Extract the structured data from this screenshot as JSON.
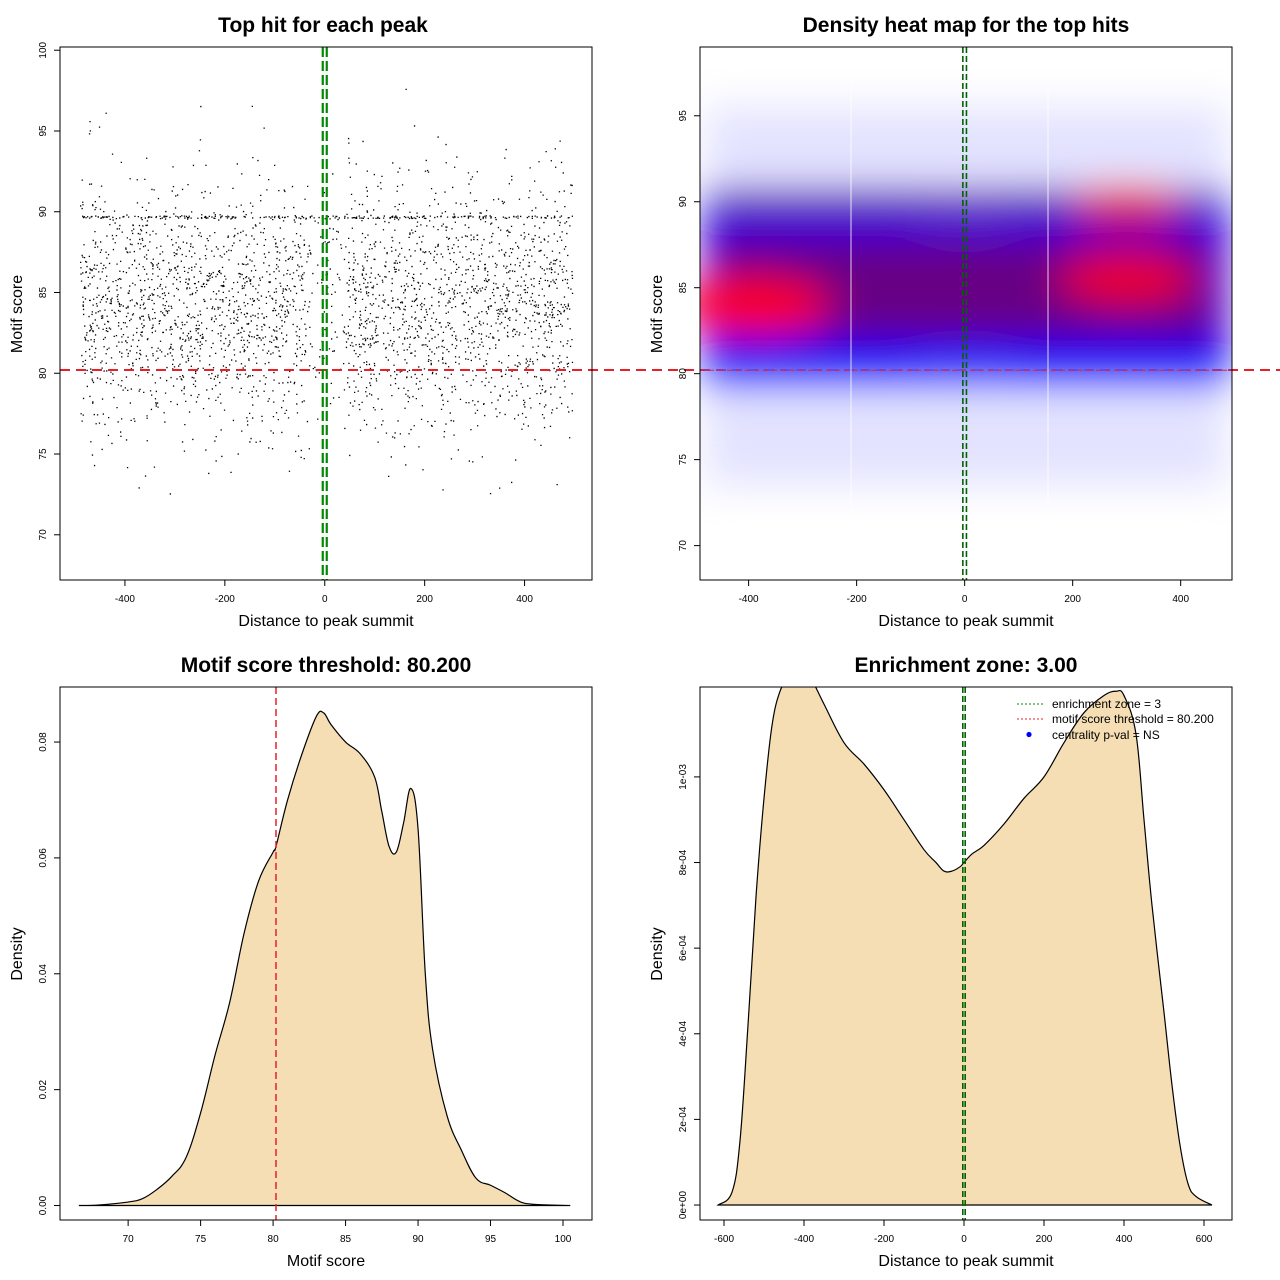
{
  "chart_data": [
    {
      "type": "scatter",
      "title": "Top hit for each peak",
      "xlabel": "Distance to peak summit",
      "ylabel": "Motif score",
      "xlim": [
        -530,
        535
      ],
      "ylim": [
        67.2,
        100.2
      ],
      "xticks": [
        "-400",
        "-200",
        "0",
        "200",
        "400"
      ],
      "xtick_values": [
        -400,
        -200,
        0,
        200,
        400
      ],
      "yticks": [
        "70",
        "75",
        "80",
        "85",
        "90",
        "95",
        "100"
      ],
      "ytick_values": [
        70,
        75,
        80,
        85,
        90,
        95,
        100
      ],
      "point_count": 9000,
      "x_range": [
        -490,
        495
      ],
      "y_center": 84.0,
      "threshold_line": 80.2,
      "center_line": 0,
      "colors": {
        "points": "#000000",
        "threshold": "#e8202a",
        "center": "#008a00"
      }
    },
    {
      "type": "heatmap",
      "title": "Density heat map for the top hits",
      "xlabel": "Distance to peak summit",
      "ylabel": "Motif score",
      "xlim": [
        -490,
        495
      ],
      "ylim": [
        68.0,
        99.0
      ],
      "xticks": [
        "-400",
        "-200",
        "0",
        "200",
        "400"
      ],
      "xtick_values": [
        -400,
        -200,
        0,
        200,
        400
      ],
      "yticks": [
        "70",
        "75",
        "80",
        "85",
        "90",
        "95"
      ],
      "ytick_values": [
        70,
        75,
        80,
        85,
        90,
        95
      ],
      "hotspots": [
        {
          "x": -395,
          "y": 84.0,
          "intensity": 1.0
        },
        {
          "x": 300,
          "y": 85.5,
          "intensity": 0.8
        },
        {
          "x": 300,
          "y": 89.7,
          "intensity": 0.6
        }
      ],
      "threshold_line": 80.2,
      "center_line": 0,
      "colors": {
        "low": "#ffffff",
        "mid": "#0000ff",
        "high": "#ff0000",
        "threshold": "#e8202a",
        "center": "#006400"
      }
    },
    {
      "type": "area",
      "title": "Motif score threshold: 80.200",
      "xlabel": "Motif score",
      "ylabel": "Density",
      "xlim": [
        65.3,
        102.0
      ],
      "ylim": [
        -0.0025,
        0.0895
      ],
      "xticks": [
        "70",
        "75",
        "80",
        "85",
        "90",
        "95",
        "100"
      ],
      "xtick_values": [
        70,
        75,
        80,
        85,
        90,
        95,
        100
      ],
      "yticks": [
        "0.00",
        "0.02",
        "0.04",
        "0.06",
        "0.08"
      ],
      "ytick_values": [
        0,
        0.02,
        0.04,
        0.06,
        0.08
      ],
      "x": [
        66.6,
        68,
        70,
        71,
        72,
        73,
        74,
        75,
        76,
        77,
        78,
        79,
        80,
        80.2,
        81,
        82,
        83,
        83.5,
        84,
        85,
        86,
        87,
        87.5,
        88,
        88.5,
        89,
        89.5,
        90,
        90.5,
        91,
        92,
        93,
        94,
        95,
        96,
        97,
        98,
        100.5
      ],
      "y": [
        0.0,
        0.0001,
        0.0006,
        0.0012,
        0.0028,
        0.005,
        0.0083,
        0.016,
        0.026,
        0.035,
        0.047,
        0.056,
        0.061,
        0.062,
        0.07,
        0.078,
        0.0845,
        0.085,
        0.083,
        0.08,
        0.078,
        0.074,
        0.068,
        0.062,
        0.061,
        0.066,
        0.072,
        0.065,
        0.04,
        0.027,
        0.0155,
        0.0095,
        0.0047,
        0.0035,
        0.0022,
        0.0007,
        0.0002,
        0.0
      ],
      "threshold_line": 80.2,
      "colors": {
        "fill": "#f5deb3",
        "threshold": "#e8202a"
      }
    },
    {
      "type": "area",
      "title": "Enrichment zone: 3.00",
      "xlabel": "Distance to peak summit",
      "ylabel": "Density",
      "xlim": [
        -660,
        670
      ],
      "ylim": [
        -3.5e-05,
        0.00121
      ],
      "xticks": [
        "-600",
        "-400",
        "-200",
        "0",
        "200",
        "400",
        "600"
      ],
      "xtick_values": [
        -600,
        -400,
        -200,
        0,
        200,
        400,
        600
      ],
      "yticks": [
        "0e+00",
        "2e-04",
        "4e-04",
        "6e-04",
        "8e-04",
        "1e-03"
      ],
      "ytick_values": [
        0,
        0.0002,
        0.0004,
        0.0006,
        0.0008,
        0.001
      ],
      "x": [
        -615,
        -580,
        -560,
        -540,
        -520,
        -500,
        -480,
        -460,
        -440,
        -420,
        -400,
        -380,
        -350,
        -300,
        -250,
        -200,
        -150,
        -100,
        -70,
        -50,
        -30,
        -10,
        0,
        20,
        50,
        100,
        150,
        200,
        250,
        300,
        350,
        380,
        400,
        430,
        450,
        470,
        500,
        520,
        540,
        560,
        580,
        620
      ],
      "y": [
        0.0,
        3e-05,
        0.00015,
        0.00042,
        0.00072,
        0.00095,
        0.00112,
        0.0012,
        0.001225,
        0.001225,
        0.00124,
        0.001225,
        0.00117,
        0.00108,
        0.00103,
        0.00097,
        0.0009,
        0.00083,
        0.0008,
        0.00078,
        0.00078,
        0.00079,
        0.0008,
        0.00082,
        0.00084,
        0.00089,
        0.00095,
        0.001,
        0.00108,
        0.00115,
        0.00119,
        0.0012,
        0.00119,
        0.0011,
        0.0009,
        0.0007,
        0.00045,
        0.00028,
        0.00014,
        5e-05,
        2e-05,
        0.0
      ],
      "enrichment_zone": 3,
      "legend": [
        {
          "label": "enrichment zone = 3",
          "style": "dotted-line",
          "color": "#008a00"
        },
        {
          "label": "motif score threshold = 80.200",
          "style": "dotted-line",
          "color": "#e8202a"
        },
        {
          "label": "centrality p-val = NS",
          "style": "dot",
          "color": "#0000ff"
        }
      ],
      "legend_position": "top-right",
      "colors": {
        "fill": "#f5deb3",
        "center": "#006400"
      }
    }
  ]
}
